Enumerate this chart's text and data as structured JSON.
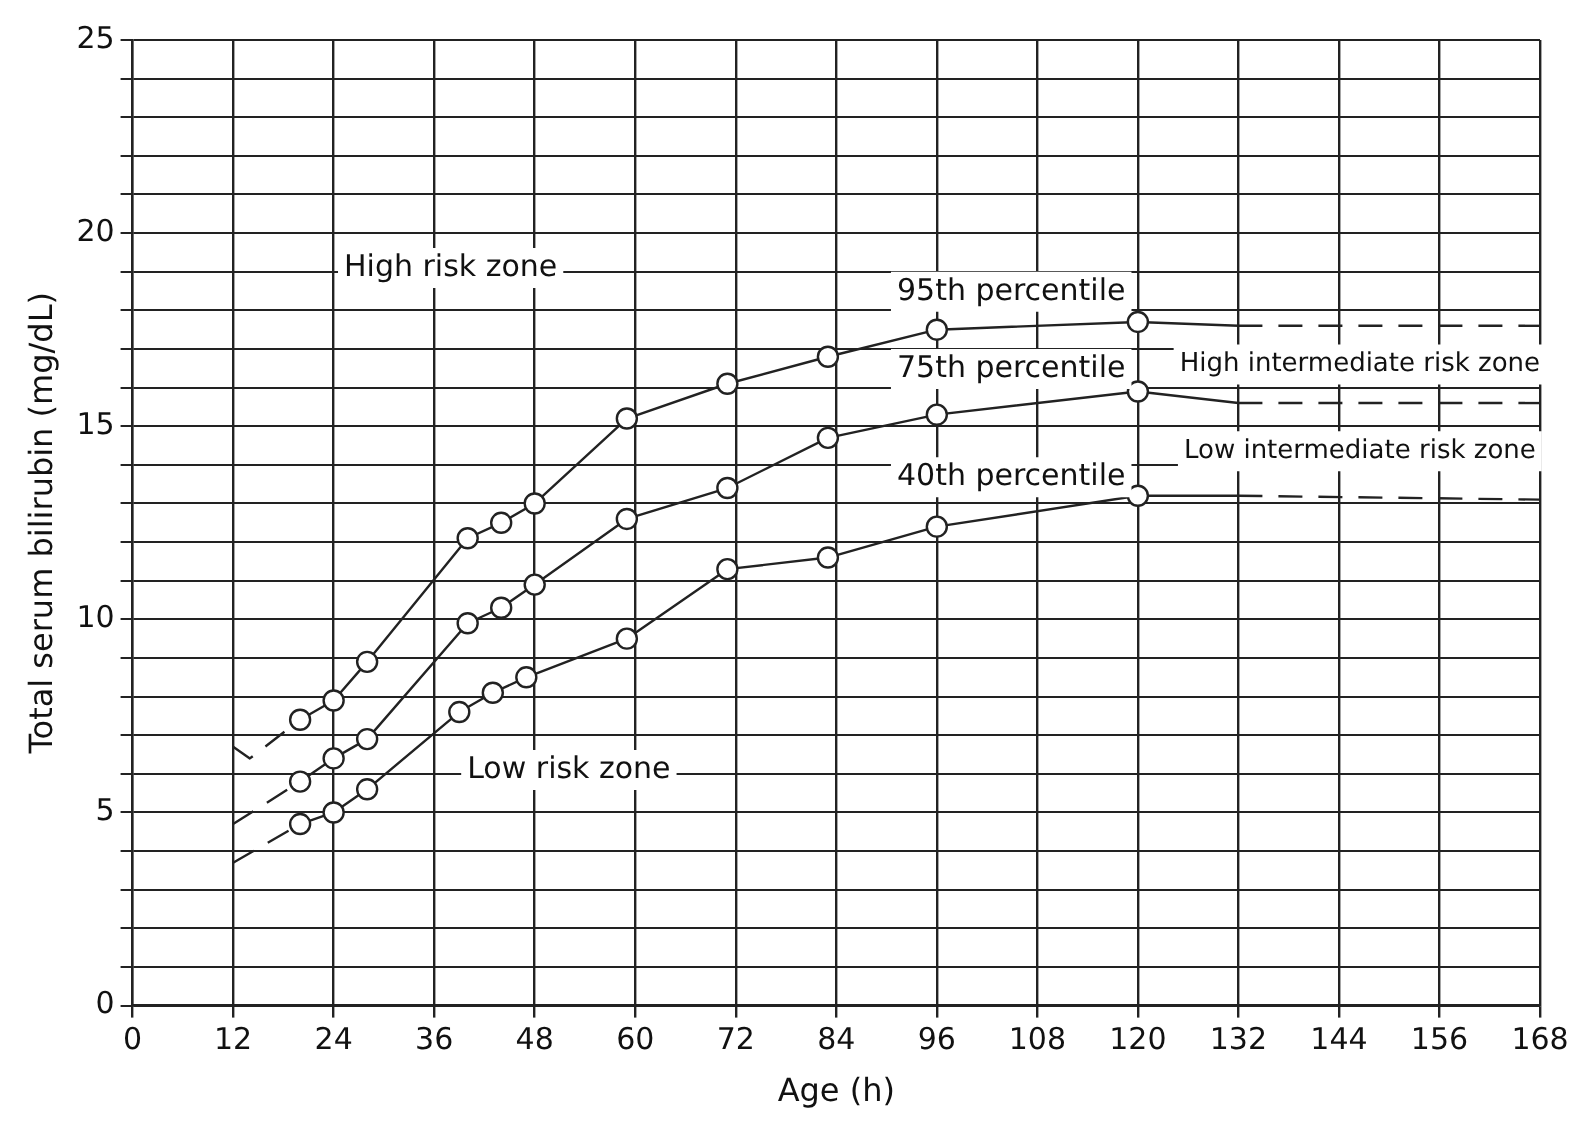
{
  "chart_data": {
    "type": "line",
    "xlabel": "Age (h)",
    "ylabel": "Total serum bilirubin (mg/dL)",
    "xlim": [
      0,
      168
    ],
    "xticks": [
      0,
      12,
      24,
      36,
      48,
      60,
      72,
      84,
      96,
      108,
      120,
      132,
      144,
      156,
      168
    ],
    "ylim": [
      0,
      25
    ],
    "yticks": [
      0,
      {
        "value": 1,
        "label": null
      },
      {
        "value": 2,
        "label": null
      },
      {
        "value": 3,
        "label": null
      },
      {
        "value": 4,
        "label": null
      },
      5,
      {
        "value": 6,
        "label": null
      },
      {
        "value": 7,
        "label": null
      },
      {
        "value": 8,
        "label": null
      },
      {
        "value": 9,
        "label": null
      },
      10,
      {
        "value": 11,
        "label": null
      },
      {
        "value": 12,
        "label": null
      },
      {
        "value": 13,
        "label": null
      },
      {
        "value": 14,
        "label": null
      },
      15,
      {
        "value": 16,
        "label": null
      },
      {
        "value": 17,
        "label": null
      },
      {
        "value": 18,
        "label": null
      },
      {
        "value": 19,
        "label": null
      },
      20,
      {
        "value": 21,
        "label": null
      },
      {
        "value": 22,
        "label": null
      },
      {
        "value": 23,
        "label": null
      },
      {
        "value": 24,
        "label": null
      },
      25
    ],
    "grid": true,
    "series": [
      {
        "name": "95th percentile",
        "color": "#222222",
        "marker": "circle",
        "line_style": "solid",
        "x": [
          20,
          24,
          28,
          40,
          44,
          48,
          59,
          71,
          83,
          96,
          120
        ],
        "values": [
          7.4,
          7.9,
          8.9,
          12.1,
          12.5,
          13.0,
          15.2,
          16.1,
          16.8,
          17.5,
          17.7
        ]
      },
      {
        "color": "#222222",
        "marker": "none",
        "line_style": "solid",
        "x": [
          120,
          132
        ],
        "values": [
          17.7,
          17.6
        ]
      },
      {
        "color": "#222222",
        "marker": "none",
        "line_style": "dashed",
        "x": [
          132,
          168
        ],
        "values": [
          17.6,
          17.6
        ]
      },
      {
        "color": "#222222",
        "marker": "none",
        "line_style": "dashed",
        "x": [
          12,
          14,
          20
        ],
        "values": [
          6.7,
          6.4,
          7.4
        ]
      },
      {
        "name": "75th percentile",
        "color": "#222222",
        "marker": "circle",
        "line_style": "solid",
        "x": [
          20,
          24,
          28,
          40,
          44,
          48,
          59,
          71,
          83,
          96,
          120
        ],
        "values": [
          5.8,
          6.4,
          6.9,
          9.9,
          10.3,
          10.9,
          12.6,
          13.4,
          14.7,
          15.3,
          15.9
        ]
      },
      {
        "color": "#222222",
        "marker": "none",
        "line_style": "solid",
        "x": [
          120,
          132
        ],
        "values": [
          15.9,
          15.6
        ]
      },
      {
        "color": "#222222",
        "marker": "none",
        "line_style": "dashed",
        "x": [
          132,
          168
        ],
        "values": [
          15.6,
          15.6
        ]
      },
      {
        "color": "#222222",
        "marker": "none",
        "line_style": "dashed",
        "x": [
          12,
          20
        ],
        "values": [
          4.7,
          5.8
        ]
      },
      {
        "name": "40th percentile",
        "color": "#222222",
        "marker": "circle",
        "line_style": "solid",
        "x": [
          20,
          24,
          28,
          39,
          43,
          47,
          59,
          71,
          83,
          96,
          120
        ],
        "values": [
          4.7,
          5.0,
          5.6,
          7.6,
          8.1,
          8.5,
          9.5,
          11.3,
          11.6,
          12.4,
          13.2
        ]
      },
      {
        "color": "#222222",
        "marker": "none",
        "line_style": "solid",
        "x": [
          120,
          132
        ],
        "values": [
          13.2,
          13.2
        ]
      },
      {
        "color": "#222222",
        "marker": "none",
        "line_style": "dashed",
        "x": [
          132,
          168
        ],
        "values": [
          13.2,
          13.1
        ]
      },
      {
        "color": "#222222",
        "marker": "none",
        "line_style": "dashed",
        "x": [
          12,
          20
        ],
        "values": [
          3.7,
          4.7
        ]
      }
    ],
    "annotations": [
      "High risk zone",
      "High intermediate risk zone",
      "Low intermediate risk zone",
      "Low risk zone"
    ]
  }
}
